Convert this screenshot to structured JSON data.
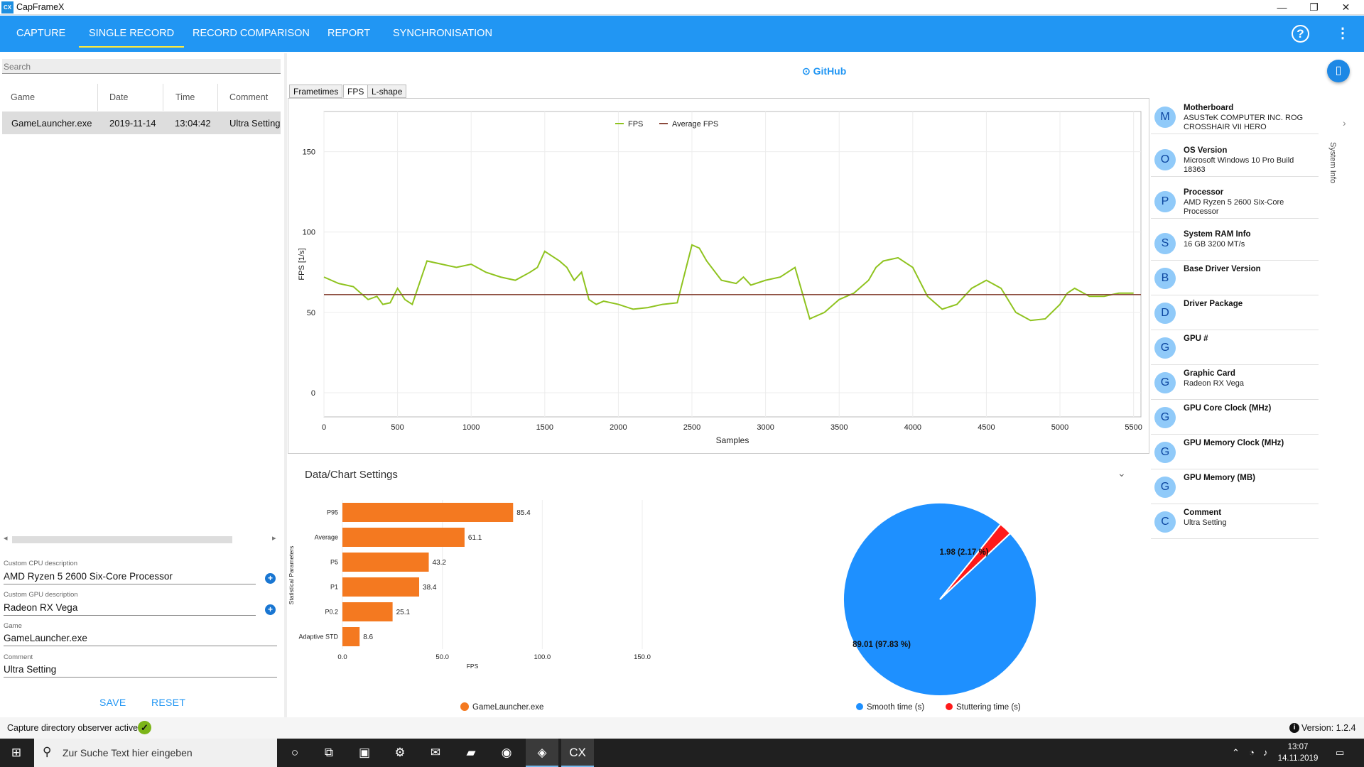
{
  "app": {
    "title": "CapFrameX",
    "logo_text": "CX"
  },
  "window_buttons": {
    "minimize": "—",
    "maximize": "❐",
    "close": "✕"
  },
  "nav": {
    "tabs": [
      "CAPTURE",
      "SINGLE RECORD",
      "RECORD COMPARISON",
      "REPORT",
      "SYNCHRONISATION"
    ],
    "active": "SINGLE RECORD",
    "help_icon": "?",
    "menu_icon": "⋮"
  },
  "search": {
    "placeholder": "Search"
  },
  "records_table": {
    "headers": [
      "Game",
      "Date",
      "Time",
      "Comment"
    ],
    "rows": [
      {
        "game": "GameLauncher.exe",
        "date": "2019-11-14",
        "time": "13:04:42",
        "comment": "Ultra Setting"
      }
    ]
  },
  "form": {
    "cpu_label": "Custom CPU description",
    "cpu_value": "AMD Ryzen 5 2600 Six-Core Processor",
    "gpu_label": "Custom GPU description",
    "gpu_value": "Radeon RX Vega",
    "game_label": "Game",
    "game_value": "GameLauncher.exe",
    "comment_label": "Comment",
    "comment_value": "Ultra Setting",
    "save": "SAVE",
    "reset": "RESET"
  },
  "status": {
    "text": "Capture directory observer active:",
    "version": "Version: 1.2.4",
    "info_icon": "i"
  },
  "github": {
    "label": "GitHub"
  },
  "chart_tabs": [
    "Frametimes",
    "FPS",
    "L-shape"
  ],
  "chart_tab_active": "FPS",
  "settings_title": "Data/Chart Settings",
  "system_info_label": "System Info",
  "system_info": [
    {
      "letter": "M",
      "title": "Motherboard",
      "value": "ASUSTeK COMPUTER INC. ROG CROSSHAIR VII HERO"
    },
    {
      "letter": "O",
      "title": "OS Version",
      "value": "Microsoft Windows 10 Pro Build 18363"
    },
    {
      "letter": "P",
      "title": "Processor",
      "value": "AMD Ryzen 5 2600 Six-Core Processor"
    },
    {
      "letter": "S",
      "title": "System RAM Info",
      "value": "16 GB 3200 MT/s"
    },
    {
      "letter": "B",
      "title": "Base Driver Version",
      "value": ""
    },
    {
      "letter": "D",
      "title": "Driver Package",
      "value": ""
    },
    {
      "letter": "G",
      "title": "GPU #",
      "value": ""
    },
    {
      "letter": "G",
      "title": "Graphic Card",
      "value": "Radeon RX Vega"
    },
    {
      "letter": "G",
      "title": "GPU Core Clock (MHz)",
      "value": ""
    },
    {
      "letter": "G",
      "title": "GPU Memory Clock (MHz)",
      "value": ""
    },
    {
      "letter": "G",
      "title": "GPU Memory (MB)",
      "value": ""
    },
    {
      "letter": "C",
      "title": "Comment",
      "value": "Ultra Setting"
    }
  ],
  "taskbar": {
    "search_placeholder": "Zur Suche Text hier eingeben",
    "time": "13:07",
    "date": "14.11.2019"
  },
  "chart_data": [
    {
      "type": "line",
      "xlabel": "Samples",
      "ylabel": "FPS [1/s]",
      "xlim": [
        0,
        5550
      ],
      "ylim": [
        -15,
        175
      ],
      "xticks": [
        0,
        500,
        1000,
        1500,
        2000,
        2500,
        3000,
        3500,
        4000,
        4500,
        5000,
        5500
      ],
      "yticks": [
        0,
        50,
        100,
        150
      ],
      "legend": "top-center",
      "series": [
        {
          "name": "FPS",
          "color": "#8fc31f",
          "x": [
            0,
            100,
            200,
            300,
            360,
            400,
            450,
            500,
            550,
            600,
            700,
            800,
            900,
            1000,
            1100,
            1200,
            1300,
            1400,
            1450,
            1500,
            1550,
            1600,
            1650,
            1700,
            1750,
            1800,
            1850,
            1900,
            2000,
            2100,
            2200,
            2300,
            2400,
            2500,
            2550,
            2600,
            2700,
            2800,
            2850,
            2900,
            3000,
            3100,
            3200,
            3300,
            3400,
            3500,
            3600,
            3700,
            3750,
            3800,
            3900,
            4000,
            4100,
            4200,
            4300,
            4400,
            4500,
            4600,
            4700,
            4800,
            4900,
            5000,
            5050,
            5100,
            5200,
            5300,
            5400,
            5500
          ],
          "y": [
            72,
            68,
            66,
            58,
            60,
            55,
            56,
            65,
            58,
            55,
            82,
            80,
            78,
            80,
            75,
            72,
            70,
            75,
            78,
            88,
            85,
            82,
            78,
            70,
            75,
            58,
            55,
            57,
            55,
            52,
            53,
            55,
            56,
            92,
            90,
            82,
            70,
            68,
            72,
            67,
            70,
            72,
            78,
            46,
            50,
            58,
            62,
            70,
            78,
            82,
            84,
            78,
            60,
            52,
            55,
            65,
            70,
            65,
            50,
            45,
            46,
            55,
            62,
            65,
            60,
            60,
            62,
            62
          ]
        },
        {
          "name": "Average FPS",
          "color": "#8b4a3c",
          "x": [
            0,
            5550
          ],
          "y": [
            61.1,
            61.1
          ]
        }
      ]
    },
    {
      "type": "bar",
      "orientation": "horizontal",
      "categories": [
        "P95",
        "Average",
        "P5",
        "P1",
        "P0.2",
        "Adaptive STD"
      ],
      "values": [
        85.4,
        61.1,
        43.2,
        38.4,
        25.1,
        8.6
      ],
      "xlabel": "FPS",
      "ylabel": "Statistical Parameters",
      "xlim": [
        0,
        150
      ],
      "xticks": [
        "0.0",
        "50.0",
        "100.0",
        "150.0"
      ],
      "color": "#f47920",
      "series_name": "GameLauncher.exe"
    },
    {
      "type": "pie",
      "slices": [
        {
          "name": "Smooth time (s)",
          "value": 89.01,
          "label": "89.01 (97.83 %)",
          "color": "#1e90ff"
        },
        {
          "name": "Stuttering time (s)",
          "value": 1.98,
          "label": "1.98 (2.17 %)",
          "color": "#ff1a1a"
        }
      ]
    }
  ]
}
